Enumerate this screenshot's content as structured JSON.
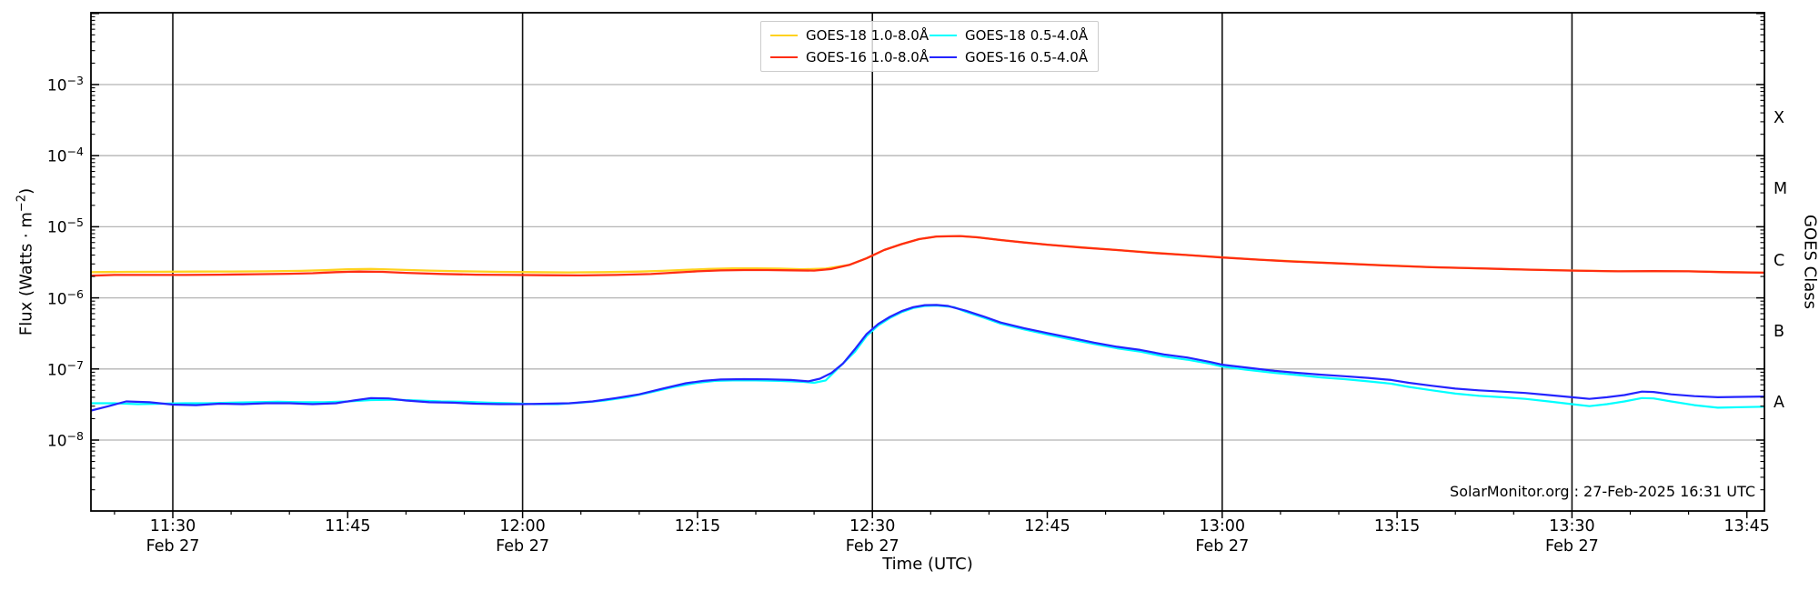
{
  "watermark": "SolarMonitor.org : 27-Feb-2025 16:31 UTC",
  "colors": {
    "grid_h": "#b5b5b5",
    "grid_v": "#111111",
    "spine": "#000000",
    "background": "#ffffff"
  },
  "chart_data": {
    "type": "line",
    "xlabel": "Time (UTC)",
    "ylabel_left_parts": {
      "pre": "Flux (Watts · m",
      "sup": "−2",
      "post": ")"
    },
    "ylabel_right": "GOES Class",
    "x_axis": {
      "unit": "minutes of day (UTC)",
      "range_minutes": [
        683,
        826.5
      ],
      "ticks": [
        {
          "t": 690,
          "label": "11:30",
          "sub": "Feb 27"
        },
        {
          "t": 705,
          "label": "11:45",
          "sub": ""
        },
        {
          "t": 720,
          "label": "12:00",
          "sub": "Feb 27"
        },
        {
          "t": 735,
          "label": "12:15",
          "sub": ""
        },
        {
          "t": 750,
          "label": "12:30",
          "sub": "Feb 27"
        },
        {
          "t": 765,
          "label": "12:45",
          "sub": ""
        },
        {
          "t": 780,
          "label": "13:00",
          "sub": "Feb 27"
        },
        {
          "t": 795,
          "label": "13:15",
          "sub": ""
        },
        {
          "t": 810,
          "label": "13:30",
          "sub": "Feb 27"
        },
        {
          "t": 825,
          "label": "13:45",
          "sub": ""
        }
      ]
    },
    "y_axis": {
      "scale": "log",
      "range": [
        1e-09,
        0.01
      ],
      "labeled_ticks": [
        {
          "base": "10",
          "exp": "−3",
          "log": -3
        },
        {
          "base": "10",
          "exp": "−4",
          "log": -4
        },
        {
          "base": "10",
          "exp": "−5",
          "log": -5
        },
        {
          "base": "10",
          "exp": "−6",
          "log": -6
        },
        {
          "base": "10",
          "exp": "−7",
          "log": -7
        },
        {
          "base": "10",
          "exp": "−8",
          "log": -8
        }
      ]
    },
    "goes_classes": [
      {
        "label": "X",
        "log_flux": -3.5
      },
      {
        "label": "M",
        "log_flux": -4.5
      },
      {
        "label": "C",
        "log_flux": -5.5
      },
      {
        "label": "B",
        "log_flux": -6.5
      },
      {
        "label": "A",
        "log_flux": -7.5
      }
    ],
    "series": [
      {
        "name": "GOES-18 1.0-8.0Å",
        "color": "#ffd21f",
        "width": 2.3,
        "points": [
          [
            683,
            2.3e-06
          ],
          [
            686,
            2.32e-06
          ],
          [
            689,
            2.33e-06
          ],
          [
            692,
            2.34e-06
          ],
          [
            695,
            2.35e-06
          ],
          [
            698,
            2.36e-06
          ],
          [
            701,
            2.4e-06
          ],
          [
            703,
            2.45e-06
          ],
          [
            705,
            2.52e-06
          ],
          [
            707,
            2.55e-06
          ],
          [
            709,
            2.5e-06
          ],
          [
            712,
            2.42e-06
          ],
          [
            715,
            2.36e-06
          ],
          [
            718,
            2.32e-06
          ],
          [
            721,
            2.3e-06
          ],
          [
            724,
            2.28e-06
          ],
          [
            727,
            2.3e-06
          ],
          [
            730,
            2.34e-06
          ],
          [
            732,
            2.4e-06
          ],
          [
            734,
            2.48e-06
          ],
          [
            736,
            2.55e-06
          ],
          [
            738,
            2.6e-06
          ],
          [
            740,
            2.6e-06
          ],
          [
            742,
            2.58e-06
          ],
          [
            744,
            2.52e-06
          ],
          [
            746,
            2.58e-06
          ],
          [
            748,
            2.9e-06
          ],
          [
            749.5,
            3.6e-06
          ],
          [
            751,
            4.7e-06
          ],
          [
            752.5,
            5.7e-06
          ],
          [
            754,
            6.7e-06
          ],
          [
            755.5,
            7.3e-06
          ],
          [
            757.5,
            7.4e-06
          ],
          [
            759,
            7.1e-06
          ],
          [
            761,
            6.5e-06
          ],
          [
            765,
            5.6e-06
          ],
          [
            771,
            4.7e-06
          ],
          [
            777,
            4e-06
          ],
          [
            783,
            3.45e-06
          ],
          [
            790,
            3.05e-06
          ],
          [
            798,
            2.7e-06
          ],
          [
            806,
            2.5e-06
          ],
          [
            814,
            2.36e-06
          ],
          [
            820,
            2.36e-06
          ],
          [
            826.5,
            2.26e-06
          ]
        ]
      },
      {
        "name": "GOES-16 1.0-8.0Å",
        "color": "#ff2d12",
        "width": 2.3,
        "points": [
          [
            683,
            2.05e-06
          ],
          [
            685,
            2.1e-06
          ],
          [
            688,
            2.1e-06
          ],
          [
            691,
            2.1e-06
          ],
          [
            694,
            2.12e-06
          ],
          [
            697,
            2.15e-06
          ],
          [
            700,
            2.18e-06
          ],
          [
            702,
            2.22e-06
          ],
          [
            704,
            2.3e-06
          ],
          [
            706,
            2.34e-06
          ],
          [
            708,
            2.32e-06
          ],
          [
            710,
            2.25e-06
          ],
          [
            713,
            2.17e-06
          ],
          [
            716,
            2.12e-06
          ],
          [
            719,
            2.1e-06
          ],
          [
            722,
            2.08e-06
          ],
          [
            725,
            2.07e-06
          ],
          [
            728,
            2.1e-06
          ],
          [
            731,
            2.16e-06
          ],
          [
            733,
            2.26e-06
          ],
          [
            735,
            2.36e-06
          ],
          [
            737,
            2.43e-06
          ],
          [
            739,
            2.46e-06
          ],
          [
            741,
            2.46e-06
          ],
          [
            743,
            2.44e-06
          ],
          [
            745,
            2.42e-06
          ],
          [
            746.5,
            2.55e-06
          ],
          [
            748,
            2.9e-06
          ],
          [
            749.5,
            3.6e-06
          ],
          [
            751,
            4.7e-06
          ],
          [
            752.5,
            5.7e-06
          ],
          [
            754,
            6.7e-06
          ],
          [
            755.5,
            7.3e-06
          ],
          [
            757.5,
            7.4e-06
          ],
          [
            759,
            7.1e-06
          ],
          [
            761,
            6.5e-06
          ],
          [
            763,
            6e-06
          ],
          [
            765,
            5.6e-06
          ],
          [
            768,
            5.1e-06
          ],
          [
            771,
            4.7e-06
          ],
          [
            774,
            4.3e-06
          ],
          [
            777,
            4e-06
          ],
          [
            780,
            3.7e-06
          ],
          [
            783,
            3.45e-06
          ],
          [
            786,
            3.25e-06
          ],
          [
            790,
            3.05e-06
          ],
          [
            794,
            2.85e-06
          ],
          [
            798,
            2.7e-06
          ],
          [
            802,
            2.6e-06
          ],
          [
            806,
            2.5e-06
          ],
          [
            810,
            2.42e-06
          ],
          [
            814,
            2.36e-06
          ],
          [
            817,
            2.38e-06
          ],
          [
            820,
            2.36e-06
          ],
          [
            823,
            2.3e-06
          ],
          [
            826.5,
            2.26e-06
          ]
        ]
      },
      {
        "name": "GOES-18 0.5-4.0Å",
        "color": "#00ffff",
        "width": 2.2,
        "points": [
          [
            683,
            3.3e-08
          ],
          [
            685,
            3.3e-08
          ],
          [
            687,
            3.2e-08
          ],
          [
            689,
            3.25e-08
          ],
          [
            691,
            3.3e-08
          ],
          [
            693,
            3.3e-08
          ],
          [
            695,
            3.35e-08
          ],
          [
            697,
            3.4e-08
          ],
          [
            699,
            3.45e-08
          ],
          [
            701,
            3.4e-08
          ],
          [
            703,
            3.4e-08
          ],
          [
            705,
            3.5e-08
          ],
          [
            707,
            3.65e-08
          ],
          [
            709,
            3.7e-08
          ],
          [
            711,
            3.6e-08
          ],
          [
            713,
            3.5e-08
          ],
          [
            715,
            3.45e-08
          ],
          [
            717,
            3.35e-08
          ],
          [
            719,
            3.3e-08
          ],
          [
            721,
            3.2e-08
          ],
          [
            723,
            3.2e-08
          ],
          [
            725,
            3.35e-08
          ],
          [
            727,
            3.6e-08
          ],
          [
            729,
            4e-08
          ],
          [
            731,
            4.7e-08
          ],
          [
            733,
            5.6e-08
          ],
          [
            735,
            6.4e-08
          ],
          [
            736.5,
            6.8e-08
          ],
          [
            738,
            6.9e-08
          ],
          [
            740,
            6.9e-08
          ],
          [
            742,
            6.8e-08
          ],
          [
            744,
            6.6e-08
          ],
          [
            745,
            6.4e-08
          ],
          [
            746,
            6.9e-08
          ],
          [
            747,
            1e-07
          ],
          [
            748.5,
            1.75e-07
          ],
          [
            749.5,
            2.9e-07
          ],
          [
            750.5,
            4.1e-07
          ],
          [
            751.5,
            5.2e-07
          ],
          [
            752.5,
            6.3e-07
          ],
          [
            753.5,
            7.2e-07
          ],
          [
            754.5,
            7.7e-07
          ],
          [
            755.5,
            7.8e-07
          ],
          [
            757,
            7.4e-07
          ],
          [
            758,
            6.4e-07
          ],
          [
            759.5,
            5.3e-07
          ],
          [
            761,
            4.35e-07
          ],
          [
            763,
            3.6e-07
          ],
          [
            765,
            3.05e-07
          ],
          [
            767,
            2.6e-07
          ],
          [
            769,
            2.25e-07
          ],
          [
            771,
            1.95e-07
          ],
          [
            773,
            1.75e-07
          ],
          [
            775,
            1.5e-07
          ],
          [
            777,
            1.35e-07
          ],
          [
            779,
            1.18e-07
          ],
          [
            780,
            1.08e-07
          ],
          [
            782,
            9.8e-08
          ],
          [
            784.5,
            8.8e-08
          ],
          [
            786.5,
            8.2e-08
          ],
          [
            788.5,
            7.6e-08
          ],
          [
            790.5,
            7.2e-08
          ],
          [
            792.5,
            6.7e-08
          ],
          [
            794.5,
            6.2e-08
          ],
          [
            796,
            5.6e-08
          ],
          [
            798,
            5e-08
          ],
          [
            800,
            4.5e-08
          ],
          [
            802,
            4.2e-08
          ],
          [
            804,
            4e-08
          ],
          [
            806,
            3.8e-08
          ],
          [
            808,
            3.5e-08
          ],
          [
            810,
            3.2e-08
          ],
          [
            811.5,
            3e-08
          ],
          [
            813,
            3.2e-08
          ],
          [
            814.5,
            3.5e-08
          ],
          [
            816,
            3.9e-08
          ],
          [
            817,
            3.85e-08
          ],
          [
            818.5,
            3.5e-08
          ],
          [
            820.5,
            3.1e-08
          ],
          [
            822.5,
            2.85e-08
          ],
          [
            824.5,
            2.9e-08
          ],
          [
            826.5,
            2.95e-08
          ]
        ]
      },
      {
        "name": "GOES-16 0.5-4.0Å",
        "color": "#2424ff",
        "width": 2.2,
        "points": [
          [
            683,
            2.6e-08
          ],
          [
            684.5,
            3e-08
          ],
          [
            686,
            3.5e-08
          ],
          [
            688,
            3.4e-08
          ],
          [
            690,
            3.15e-08
          ],
          [
            692,
            3.1e-08
          ],
          [
            694,
            3.25e-08
          ],
          [
            696,
            3.2e-08
          ],
          [
            698,
            3.3e-08
          ],
          [
            700,
            3.3e-08
          ],
          [
            702,
            3.2e-08
          ],
          [
            704,
            3.3e-08
          ],
          [
            705.5,
            3.6e-08
          ],
          [
            707,
            3.9e-08
          ],
          [
            708.5,
            3.85e-08
          ],
          [
            710,
            3.6e-08
          ],
          [
            712,
            3.4e-08
          ],
          [
            714,
            3.35e-08
          ],
          [
            716,
            3.25e-08
          ],
          [
            718,
            3.2e-08
          ],
          [
            720,
            3.2e-08
          ],
          [
            722,
            3.25e-08
          ],
          [
            724,
            3.3e-08
          ],
          [
            726,
            3.5e-08
          ],
          [
            728,
            3.9e-08
          ],
          [
            730,
            4.4e-08
          ],
          [
            732,
            5.3e-08
          ],
          [
            734,
            6.3e-08
          ],
          [
            735.5,
            6.8e-08
          ],
          [
            737,
            7.1e-08
          ],
          [
            739,
            7.2e-08
          ],
          [
            741,
            7.15e-08
          ],
          [
            743,
            7e-08
          ],
          [
            744.5,
            6.7e-08
          ],
          [
            745.5,
            7.3e-08
          ],
          [
            746.5,
            8.8e-08
          ],
          [
            747.5,
            1.2e-07
          ],
          [
            748.5,
            1.9e-07
          ],
          [
            749.5,
            3.1e-07
          ],
          [
            750.5,
            4.3e-07
          ],
          [
            751.5,
            5.4e-07
          ],
          [
            752.5,
            6.5e-07
          ],
          [
            753.5,
            7.4e-07
          ],
          [
            754.5,
            7.9e-07
          ],
          [
            755.5,
            7.95e-07
          ],
          [
            756.5,
            7.7e-07
          ],
          [
            757,
            7.3e-07
          ],
          [
            758,
            6.6e-07
          ],
          [
            759.5,
            5.5e-07
          ],
          [
            761,
            4.5e-07
          ],
          [
            763,
            3.75e-07
          ],
          [
            765,
            3.2e-07
          ],
          [
            767,
            2.75e-07
          ],
          [
            769,
            2.35e-07
          ],
          [
            771,
            2.05e-07
          ],
          [
            773,
            1.85e-07
          ],
          [
            775,
            1.6e-07
          ],
          [
            777,
            1.45e-07
          ],
          [
            779,
            1.25e-07
          ],
          [
            780,
            1.15e-07
          ],
          [
            782,
            1.05e-07
          ],
          [
            784.5,
            9.4e-08
          ],
          [
            786.5,
            8.8e-08
          ],
          [
            788.5,
            8.3e-08
          ],
          [
            790.5,
            7.9e-08
          ],
          [
            792.5,
            7.5e-08
          ],
          [
            794.5,
            7e-08
          ],
          [
            796,
            6.4e-08
          ],
          [
            798,
            5.8e-08
          ],
          [
            800,
            5.3e-08
          ],
          [
            802,
            5e-08
          ],
          [
            804,
            4.8e-08
          ],
          [
            806,
            4.6e-08
          ],
          [
            808,
            4.3e-08
          ],
          [
            810,
            4e-08
          ],
          [
            811.5,
            3.8e-08
          ],
          [
            813,
            4e-08
          ],
          [
            814.5,
            4.3e-08
          ],
          [
            816,
            4.8e-08
          ],
          [
            817,
            4.75e-08
          ],
          [
            818.5,
            4.4e-08
          ],
          [
            820.5,
            4.15e-08
          ],
          [
            822.5,
            4e-08
          ],
          [
            824.5,
            4.05e-08
          ],
          [
            826.5,
            4.1e-08
          ]
        ]
      }
    ],
    "annotation": "SolarMonitor.org : 27-Feb-2025 16:31 UTC"
  }
}
